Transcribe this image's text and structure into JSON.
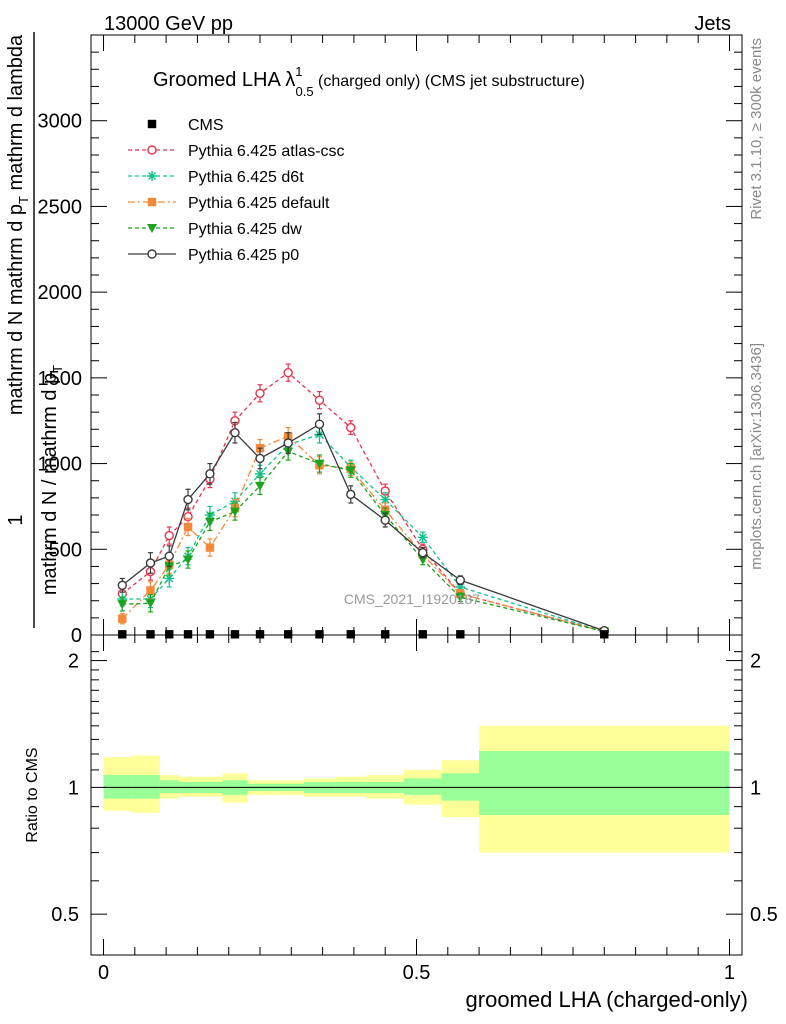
{
  "header": {
    "energy": "13000 GeV pp",
    "category": "Jets"
  },
  "side": {
    "rivet": "Rivet 3.1.10, ≥ 300k events",
    "mcplots": "mcplots.cern.ch [arXiv:1306.3436]"
  },
  "watermark": "CMS_2021_I1920187",
  "chart_data": [
    {
      "type": "line",
      "title_prefix": "Groomed LHA λ",
      "title_sup": "1",
      "title_sub": "0.5",
      "title_suffix": "(charged only) (CMS jet substructure)",
      "ylabel_parts": [
        "1",
        "mathrm d N / mathrm d p",
        "T",
        "mathrm d N",
        "mathrm d p",
        "T",
        "mathrm d lambda"
      ],
      "ylim": [
        0,
        3500
      ],
      "yticks": [
        0,
        500,
        1000,
        1500,
        2000,
        2500,
        3000
      ],
      "ytick_labels": [
        "0",
        "500",
        "1000",
        "1500",
        "2000",
        "2500",
        "3000"
      ],
      "xlim": [
        -0.02,
        1.02
      ],
      "legend_position": "top-left",
      "series": [
        {
          "name": "CMS",
          "color": "#000000",
          "marker": "square-filled",
          "dash": "",
          "x": [
            0.03,
            0.075,
            0.105,
            0.135,
            0.17,
            0.21,
            0.25,
            0.295,
            0.345,
            0.395,
            0.45,
            0.51,
            0.57,
            0.8
          ],
          "y": [
            4,
            4,
            4,
            4,
            4,
            4,
            4,
            4,
            4,
            4,
            4,
            4,
            4,
            4
          ],
          "err": [
            0,
            0,
            0,
            0,
            0,
            0,
            0,
            0,
            0,
            0,
            0,
            0,
            0,
            0
          ]
        },
        {
          "name": "Pythia 6.425 atlas-csc",
          "color": "#e8334d",
          "marker": "circle-open",
          "dash": "4,3",
          "x": [
            0.03,
            0.075,
            0.105,
            0.135,
            0.17,
            0.21,
            0.25,
            0.295,
            0.345,
            0.395,
            0.45,
            0.51,
            0.57,
            0.8
          ],
          "y": [
            240,
            370,
            580,
            690,
            910,
            1250,
            1410,
            1530,
            1370,
            1210,
            840,
            500,
            240,
            20
          ],
          "err": [
            40,
            50,
            50,
            50,
            50,
            50,
            50,
            50,
            50,
            40,
            40,
            30,
            25,
            5
          ]
        },
        {
          "name": "Pythia 6.425 d6t",
          "color": "#11c28c",
          "marker": "star",
          "dash": "4,3",
          "x": [
            0.03,
            0.075,
            0.105,
            0.135,
            0.17,
            0.21,
            0.25,
            0.295,
            0.345,
            0.395,
            0.45,
            0.51,
            0.57,
            0.8
          ],
          "y": [
            210,
            210,
            330,
            460,
            700,
            780,
            940,
            1110,
            1170,
            980,
            790,
            570,
            280,
            20
          ],
          "err": [
            40,
            50,
            50,
            50,
            50,
            50,
            50,
            50,
            50,
            40,
            40,
            30,
            25,
            5
          ]
        },
        {
          "name": "Pythia 6.425 default",
          "color": "#f28a3a",
          "marker": "square-filled",
          "dash": "7,3,2,3",
          "x": [
            0.03,
            0.075,
            0.105,
            0.135,
            0.17,
            0.21,
            0.25,
            0.295,
            0.345,
            0.395,
            0.45,
            0.51,
            0.57,
            0.8
          ],
          "y": [
            95,
            260,
            410,
            630,
            510,
            740,
            1090,
            1160,
            990,
            970,
            730,
            470,
            240,
            20
          ],
          "err": [
            30,
            50,
            50,
            50,
            50,
            50,
            50,
            50,
            50,
            40,
            40,
            30,
            25,
            5
          ]
        },
        {
          "name": "Pythia 6.425 dw",
          "color": "#1ea31e",
          "marker": "triangle-down",
          "dash": "4,3",
          "x": [
            0.03,
            0.075,
            0.105,
            0.135,
            0.17,
            0.21,
            0.25,
            0.295,
            0.345,
            0.395,
            0.45,
            0.51,
            0.57,
            0.8
          ],
          "y": [
            180,
            185,
            400,
            440,
            660,
            720,
            870,
            1070,
            1000,
            960,
            700,
            440,
            220,
            20
          ],
          "err": [
            40,
            50,
            50,
            50,
            50,
            50,
            50,
            50,
            50,
            40,
            40,
            30,
            25,
            5
          ]
        },
        {
          "name": "Pythia 6.425 p0",
          "color": "#3a3a3a",
          "marker": "circle-open",
          "dash": "",
          "x": [
            0.03,
            0.075,
            0.105,
            0.135,
            0.17,
            0.21,
            0.25,
            0.295,
            0.345,
            0.395,
            0.45,
            0.51,
            0.57,
            0.8
          ],
          "y": [
            290,
            420,
            460,
            790,
            940,
            1180,
            1030,
            1120,
            1230,
            820,
            670,
            480,
            320,
            25
          ],
          "err": [
            40,
            60,
            60,
            60,
            60,
            60,
            60,
            60,
            60,
            50,
            40,
            30,
            25,
            5
          ]
        }
      ]
    },
    {
      "type": "area",
      "ylabel": "Ratio to CMS",
      "xlabel": "groomed LHA (charged-only)",
      "ylim": [
        0.4,
        2.3
      ],
      "log_y": true,
      "yticks": [
        0.5,
        1,
        2
      ],
      "ytick_labels": [
        "0.5",
        "1",
        "2"
      ],
      "xlim": [
        -0.02,
        1.02
      ],
      "xticks": [
        0,
        0.5,
        1
      ],
      "xtick_labels": [
        "0",
        "0.5",
        "1"
      ],
      "bin_edges": [
        0.0,
        0.045,
        0.09,
        0.12,
        0.15,
        0.19,
        0.23,
        0.27,
        0.32,
        0.37,
        0.42,
        0.48,
        0.54,
        0.6,
        1.0
      ],
      "outer_band": {
        "color": "#ffff99",
        "low": [
          0.88,
          0.87,
          0.94,
          0.95,
          0.95,
          0.92,
          0.96,
          0.96,
          0.95,
          0.95,
          0.94,
          0.91,
          0.85,
          0.7
        ],
        "high": [
          1.18,
          1.19,
          1.07,
          1.06,
          1.06,
          1.08,
          1.04,
          1.04,
          1.05,
          1.06,
          1.07,
          1.1,
          1.16,
          1.4
        ]
      },
      "inner_band": {
        "color": "#99ff99",
        "low": [
          0.94,
          0.94,
          0.97,
          0.97,
          0.97,
          0.96,
          0.98,
          0.98,
          0.97,
          0.97,
          0.97,
          0.96,
          0.93,
          0.86
        ],
        "high": [
          1.07,
          1.07,
          1.04,
          1.03,
          1.03,
          1.04,
          1.02,
          1.02,
          1.03,
          1.03,
          1.03,
          1.05,
          1.08,
          1.22
        ]
      },
      "reference": 1.0
    }
  ]
}
